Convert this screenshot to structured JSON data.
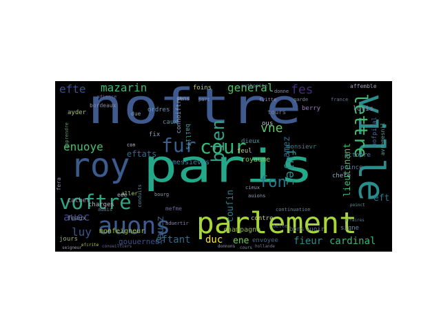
{
  "words": [
    {
      "text": "noftre",
      "color": "#3e5a8f"
    },
    {
      "text": "paris",
      "color": "#23a88a"
    },
    {
      "text": "ville",
      "color": "#2b8c8c"
    },
    {
      "text": "parlement",
      "color": "#a8d63a"
    },
    {
      "text": "roy",
      "color": "#3b5b8e"
    },
    {
      "text": "voftre",
      "color": "#2fa584"
    },
    {
      "text": "auons",
      "color": "#3e5a8f"
    },
    {
      "text": "cour",
      "color": "#35b779"
    },
    {
      "text": "lettre",
      "color": "#3dbc74"
    },
    {
      "text": "bien",
      "color": "#31a085"
    },
    {
      "text": "fur",
      "color": "#3a5f8f"
    },
    {
      "text": "mazarin",
      "color": "#3fbc73"
    },
    {
      "text": "general",
      "color": "#52c569"
    },
    {
      "text": "enuoye",
      "color": "#4ac16d"
    },
    {
      "text": "eftats",
      "color": "#2e6e8e"
    },
    {
      "text": "fon",
      "color": "#2c738e"
    },
    {
      "text": "fujet",
      "color": "#2c8d8a"
    },
    {
      "text": "lieutenant",
      "color": "#44bf70"
    },
    {
      "text": "cardinal",
      "color": "#35b779"
    },
    {
      "text": "fieur",
      "color": "#2b8c8c"
    },
    {
      "text": "duc",
      "color": "#fde725"
    },
    {
      "text": "eftant",
      "color": "#2f6c8e"
    },
    {
      "text": "auez",
      "color": "#35607d"
    },
    {
      "text": "couſin",
      "color": "#26828e"
    },
    {
      "text": "luy",
      "color": "#39568c"
    },
    {
      "text": "auec",
      "color": "#3f4a8a"
    },
    {
      "text": "efte",
      "color": "#3a548c"
    },
    {
      "text": "fes",
      "color": "#472d7b"
    },
    {
      "text": "vne",
      "color": "#5ec962"
    },
    {
      "text": "eft",
      "color": "#2a788e"
    },
    {
      "text": "ene",
      "color": "#75d054"
    },
    {
      "text": "amez",
      "color": "#2f6b8e"
    },
    {
      "text": "tours",
      "color": "#7a7a9a"
    },
    {
      "text": "lovis",
      "color": "#8a8ab0"
    },
    {
      "text": "berry",
      "color": "#9a7ab8"
    },
    {
      "text": "octobre",
      "color": "#4f7fa0"
    },
    {
      "text": "signe",
      "color": "#6a8aa0"
    },
    {
      "text": "royaume",
      "color": "#7ad151"
    },
    {
      "text": "contre",
      "color": "#c8d650"
    },
    {
      "text": "bons",
      "color": "#5a6a8a"
    },
    {
      "text": "auoir",
      "color": "#6a7aa0"
    },
    {
      "text": "chere",
      "color": "#8ab0c8"
    },
    {
      "text": "envoyee",
      "color": "#3e6a8e"
    },
    {
      "text": "champagne",
      "color": "#94b84a"
    },
    {
      "text": "gouuerneur",
      "color": "#3b528b"
    },
    {
      "text": "monfeigneur",
      "color": "#a0c040"
    },
    {
      "text": "messievrs",
      "color": "#3a80a0"
    },
    {
      "text": "ordres",
      "color": "#6a9ab8"
    },
    {
      "text": "foins",
      "color": "#bcd44a"
    },
    {
      "text": "caux",
      "color": "#5a8aa0"
    },
    {
      "text": "bailifs",
      "color": "#46a0a0"
    },
    {
      "text": "fix",
      "color": "#8a9ab0"
    },
    {
      "text": "connoiftre",
      "color": "#8aa0b8"
    },
    {
      "text": "feul",
      "color": "#c8d068"
    },
    {
      "text": "dieux",
      "color": "#2fa0a0"
    },
    {
      "text": "ous",
      "color": "#b8c8d8"
    },
    {
      "text": "cens",
      "color": "#9aa0b0"
    },
    {
      "text": "due",
      "color": "#8aa0a0"
    },
    {
      "text": "ayder",
      "color": "#a8c848"
    },
    {
      "text": "charges",
      "color": "#b8b8c8"
    },
    {
      "text": "cachet",
      "color": "#9a9ab0"
    },
    {
      "text": "feaux",
      "color": "#7a8aa0"
    },
    {
      "text": "jours",
      "color": "#a0b070"
    },
    {
      "text": "monsievr",
      "color": "#2a8a8a"
    },
    {
      "text": "prince",
      "color": "#5a7aa0"
    },
    {
      "text": "hofpital",
      "color": "#4a6aa0"
    },
    {
      "text": "affemble",
      "color": "#a0a0b8"
    },
    {
      "text": "avremesnil",
      "color": "#5a9a9a"
    },
    {
      "text": "bordeaux",
      "color": "#8a8aa0"
    },
    {
      "text": "adience",
      "color": "#6a6a9a"
    },
    {
      "text": "apprendre",
      "color": "#5a9a6a"
    },
    {
      "text": "con",
      "color": "#c0c0d0"
    },
    {
      "text": "aller",
      "color": "#a0c878"
    },
    {
      "text": "conduits",
      "color": "#5a8a9a"
    },
    {
      "text": "bourg",
      "color": "#8a9aa8"
    },
    {
      "text": "mefme",
      "color": "#6a6aa0"
    },
    {
      "text": "aduertir",
      "color": "#8a8ab0"
    },
    {
      "text": "belle",
      "color": "#5a6a9a"
    },
    {
      "text": "cieux",
      "color": "#9aa0b8"
    },
    {
      "text": "auions",
      "color": "#8aa0b8"
    },
    {
      "text": "france",
      "color": "#6a7a9a"
    },
    {
      "text": "fvitte",
      "color": "#9a8ab8"
    },
    {
      "text": "garde",
      "color": "#7a8a9a"
    },
    {
      "text": "donne",
      "color": "#8a9ab0"
    },
    {
      "text": "continuation",
      "color": "#6a8a9a"
    },
    {
      "text": "hollande",
      "color": "#7a7aa0"
    },
    {
      "text": "conseilliers",
      "color": "#6a6a9a"
    },
    {
      "text": "eſcrite",
      "color": "#b8c850"
    },
    {
      "text": "seigneur",
      "color": "#a0a0b8"
    },
    {
      "text": "aduis",
      "color": "#5a8a9a"
    },
    {
      "text": "fera",
      "color": "#8a8ab0"
    },
    {
      "text": "cours",
      "color": "#7a9aa8"
    },
    {
      "text": "donnons",
      "color": "#9aa0b0"
    },
    {
      "text": "authorite",
      "color": "#6a7aa0"
    },
    {
      "text": "part",
      "color": "#8a8aa8"
    },
    {
      "text": "eee",
      "color": "#a8b0c8"
    },
    {
      "text": "poinct",
      "color": "#6a9aa0"
    },
    {
      "text": "affaires",
      "color": "#5a7a9a"
    }
  ]
}
